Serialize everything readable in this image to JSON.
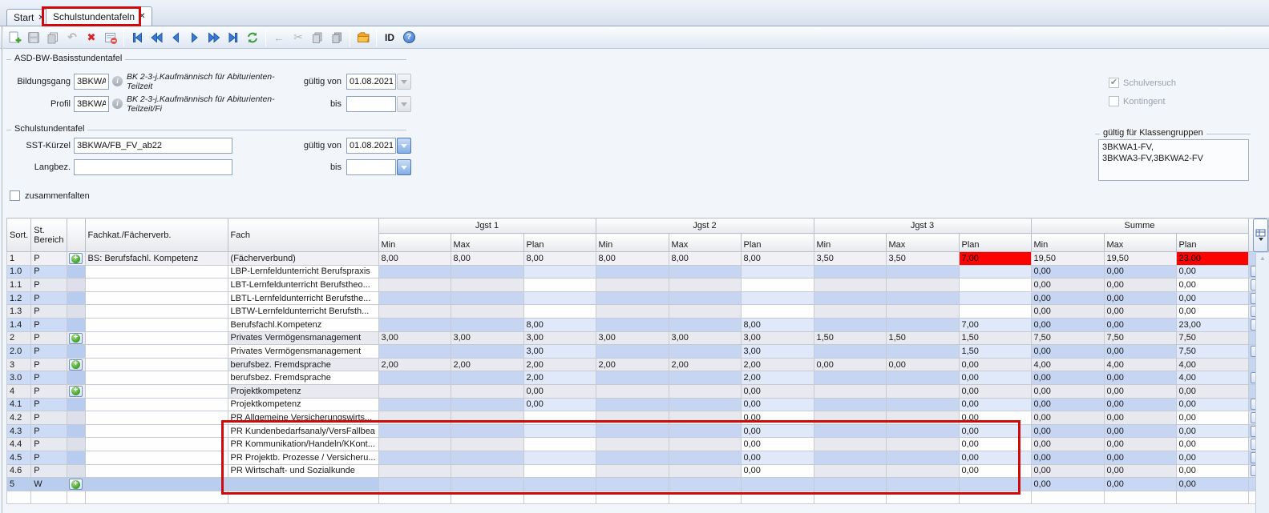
{
  "window": {
    "tabs": [
      {
        "label": "Start",
        "close": "✕"
      },
      {
        "label": "Schulstundentafeln",
        "close": "✕"
      }
    ]
  },
  "toolbar": {
    "icons": [
      "new-record",
      "save",
      "duplicate-record",
      "undo",
      "delete-record",
      "form-remove",
      "nav-first",
      "nav-rewind",
      "nav-prev",
      "nav-next",
      "nav-forward",
      "nav-last",
      "refresh",
      "go-back",
      "cut",
      "copy",
      "paste",
      "folder",
      "id",
      "help"
    ],
    "id_label": "ID"
  },
  "form": {
    "basis": {
      "legend": "ASD-BW-Basisstundentafel",
      "bildungsgang_label": "Bildungsgang",
      "bildungsgang_value": "3BKWA",
      "bildungsgang_desc": "BK 2-3-j.Kaufmännisch für Abiturienten-Teilzeit",
      "profil_label": "Profil",
      "profil_value": "3BKWA",
      "profil_desc": "BK 2-3-j.Kaufmännisch für Abiturienten-Teilzeit/Fi",
      "gueltig_von_label": "gültig von",
      "gueltig_von_value": "01.08.2021",
      "bis_label": "bis",
      "bis_value": ""
    },
    "sst": {
      "legend": "Schulstundentafel",
      "kuerzel_label": "SST-Kürzel",
      "kuerzel_value": "3BKWA/FB_FV_ab22",
      "langbez_label": "Langbez.",
      "langbez_value": "",
      "gueltig_von_label": "gültig von",
      "gueltig_von_value": "01.08.2021",
      "bis_label": "bis",
      "bis_value": ""
    },
    "schulversuch_label": "Schulversuch",
    "kontingent_label": "Kontingent",
    "klassengruppen": {
      "legend": "gültig für Klassengruppen",
      "line1": "3BKWA1-FV,",
      "line2": "3BKWA3-FV,3BKWA2-FV"
    },
    "zusammenfalten_label": "zusammenfalten"
  },
  "colors": {
    "error_cell": "#fe0202",
    "annotation_red": "#cf0a0a",
    "row_blue": "#c6d6f2",
    "row_plan_blue": "#dfe9fa",
    "selected_row": "#b9cdee"
  },
  "table": {
    "col_headers": {
      "sort": "Sort.",
      "bereich": "St.\nBereich",
      "fachkat": "Fachkat./Fächerverb.",
      "fach": "Fach"
    },
    "groups": [
      "Jgst 1",
      "Jgst 2",
      "Jgst 3",
      "Summe"
    ],
    "subheaders": [
      "Min",
      "Max",
      "Plan"
    ],
    "rows": [
      {
        "sort": "1",
        "bereich": "P",
        "add": true,
        "del": false,
        "style": "r1",
        "fachkat": "BS: Berufsfachl. Kompetenz",
        "fach": "(Fächerverbund)",
        "values": [
          "8,00",
          "8,00",
          "8,00",
          "8,00",
          "8,00",
          "8,00",
          "3,50",
          "3,50",
          "7,00",
          "19,50",
          "19,50",
          "23,00"
        ],
        "red": [
          8,
          11
        ]
      },
      {
        "sort": "1.0",
        "bereich": "P",
        "add": false,
        "del": true,
        "style": "bl",
        "fachkat": "",
        "fach": "LBP-Lernfeldunterricht Berufspraxis",
        "values": [
          "",
          "",
          "",
          "",
          "",
          "",
          "",
          "",
          "",
          "0,00",
          "0,00",
          "0,00"
        ],
        "red": []
      },
      {
        "sort": "1.1",
        "bereich": "P",
        "add": false,
        "del": true,
        "style": "gr",
        "fachkat": "",
        "fach": "LBT-Lernfeldunterricht Berufstheo...",
        "values": [
          "",
          "",
          "",
          "",
          "",
          "",
          "",
          "",
          "",
          "0,00",
          "0,00",
          "0,00"
        ],
        "red": []
      },
      {
        "sort": "1.2",
        "bereich": "P",
        "add": false,
        "del": true,
        "style": "bl",
        "fachkat": "",
        "fach": "LBTL-Lernfeldunterricht Berufsthe...",
        "values": [
          "",
          "",
          "",
          "",
          "",
          "",
          "",
          "",
          "",
          "0,00",
          "0,00",
          "0,00"
        ],
        "red": []
      },
      {
        "sort": "1.3",
        "bereich": "P",
        "add": false,
        "del": true,
        "style": "gr",
        "fachkat": "",
        "fach": "LBTW-Lernfeldunterricht Berufsth...",
        "values": [
          "",
          "",
          "",
          "",
          "",
          "",
          "",
          "",
          "",
          "0,00",
          "0,00",
          "0,00"
        ],
        "red": []
      },
      {
        "sort": "1.4",
        "bereich": "P",
        "add": false,
        "del": true,
        "style": "bl",
        "fachkat": "",
        "fach": "Berufsfachl.Kompetenz",
        "values": [
          "",
          "",
          "8,00",
          "",
          "",
          "8,00",
          "",
          "",
          "7,00",
          "0,00",
          "0,00",
          "23,00"
        ],
        "red": []
      },
      {
        "sort": "2",
        "bereich": "P",
        "add": true,
        "del": false,
        "style": "mn",
        "fachkat": "",
        "fach": "Privates Vermögensmanagement",
        "values": [
          "3,00",
          "3,00",
          "3,00",
          "3,00",
          "3,00",
          "3,00",
          "1,50",
          "1,50",
          "1,50",
          "7,50",
          "7,50",
          "7,50"
        ],
        "red": []
      },
      {
        "sort": "2.0",
        "bereich": "P",
        "add": false,
        "del": true,
        "style": "bl",
        "fachkat": "",
        "fach": "Privates Vermögensmanagement",
        "values": [
          "",
          "",
          "3,00",
          "",
          "",
          "3,00",
          "",
          "",
          "1,50",
          "0,00",
          "0,00",
          "7,50"
        ],
        "red": []
      },
      {
        "sort": "3",
        "bereich": "P",
        "add": true,
        "del": false,
        "style": "mn",
        "fachkat": "",
        "fach": "berufsbez. Fremdsprache",
        "values": [
          "2,00",
          "2,00",
          "2,00",
          "2,00",
          "2,00",
          "2,00",
          "0,00",
          "0,00",
          "0,00",
          "4,00",
          "4,00",
          "4,00"
        ],
        "red": []
      },
      {
        "sort": "3.0",
        "bereich": "P",
        "add": false,
        "del": true,
        "style": "bl",
        "fachkat": "",
        "fach": "berufsbez. Fremdsprache",
        "values": [
          "",
          "",
          "2,00",
          "",
          "",
          "2,00",
          "",
          "",
          "0,00",
          "0,00",
          "0,00",
          "4,00"
        ],
        "red": []
      },
      {
        "sort": "4",
        "bereich": "P",
        "add": true,
        "del": false,
        "style": "mn",
        "fachkat": "",
        "fach": "Projektkompetenz",
        "values": [
          "",
          "",
          "0,00",
          "",
          "",
          "0,00",
          "",
          "",
          "0,00",
          "0,00",
          "0,00",
          "0,00"
        ],
        "red": []
      },
      {
        "sort": "4.1",
        "bereich": "P",
        "add": false,
        "del": true,
        "style": "bl",
        "fachkat": "",
        "fach": "Projektkompetenz",
        "values": [
          "",
          "",
          "0,00",
          "",
          "",
          "0,00",
          "",
          "",
          "0,00",
          "0,00",
          "0,00",
          "0,00"
        ],
        "red": []
      },
      {
        "sort": "4.2",
        "bereich": "P",
        "add": false,
        "del": true,
        "style": "gr",
        "fachkat": "",
        "fach": "PR Allgemeine Versicherungswirts...",
        "values": [
          "",
          "",
          "",
          "",
          "",
          "0,00",
          "",
          "",
          "0,00",
          "0,00",
          "0,00",
          "0,00"
        ],
        "red": []
      },
      {
        "sort": "4.3",
        "bereich": "P",
        "add": false,
        "del": true,
        "style": "bl",
        "fachkat": "",
        "fach": "PR Kundenbedarfsanaly/VersFallbea",
        "values": [
          "",
          "",
          "",
          "",
          "",
          "0,00",
          "",
          "",
          "0,00",
          "0,00",
          "0,00",
          "0,00"
        ],
        "red": []
      },
      {
        "sort": "4.4",
        "bereich": "P",
        "add": false,
        "del": true,
        "style": "gr",
        "fachkat": "",
        "fach": "PR Kommunikation/Handeln/KKont...",
        "values": [
          "",
          "",
          "",
          "",
          "",
          "0,00",
          "",
          "",
          "0,00",
          "0,00",
          "0,00",
          "0,00"
        ],
        "red": []
      },
      {
        "sort": "4.5",
        "bereich": "P",
        "add": false,
        "del": true,
        "style": "bl",
        "fachkat": "",
        "fach": "PR Projektb. Prozesse / Versicheru...",
        "values": [
          "",
          "",
          "",
          "",
          "",
          "0,00",
          "",
          "",
          "0,00",
          "0,00",
          "0,00",
          "0,00"
        ],
        "red": []
      },
      {
        "sort": "4.6",
        "bereich": "P",
        "add": false,
        "del": true,
        "style": "gr",
        "fachkat": "",
        "fach": "PR Wirtschaft- und Sozialkunde",
        "values": [
          "",
          "",
          "",
          "",
          "",
          "0,00",
          "",
          "",
          "0,00",
          "0,00",
          "0,00",
          "0,00"
        ],
        "red": []
      },
      {
        "sort": "5",
        "bereich": "W",
        "add": true,
        "del": false,
        "style": "sel",
        "fachkat": "",
        "fach": "",
        "values": [
          "",
          "",
          "",
          "",
          "",
          "",
          "",
          "",
          "",
          "0,00",
          "0,00",
          "0,00"
        ],
        "red": []
      }
    ]
  }
}
